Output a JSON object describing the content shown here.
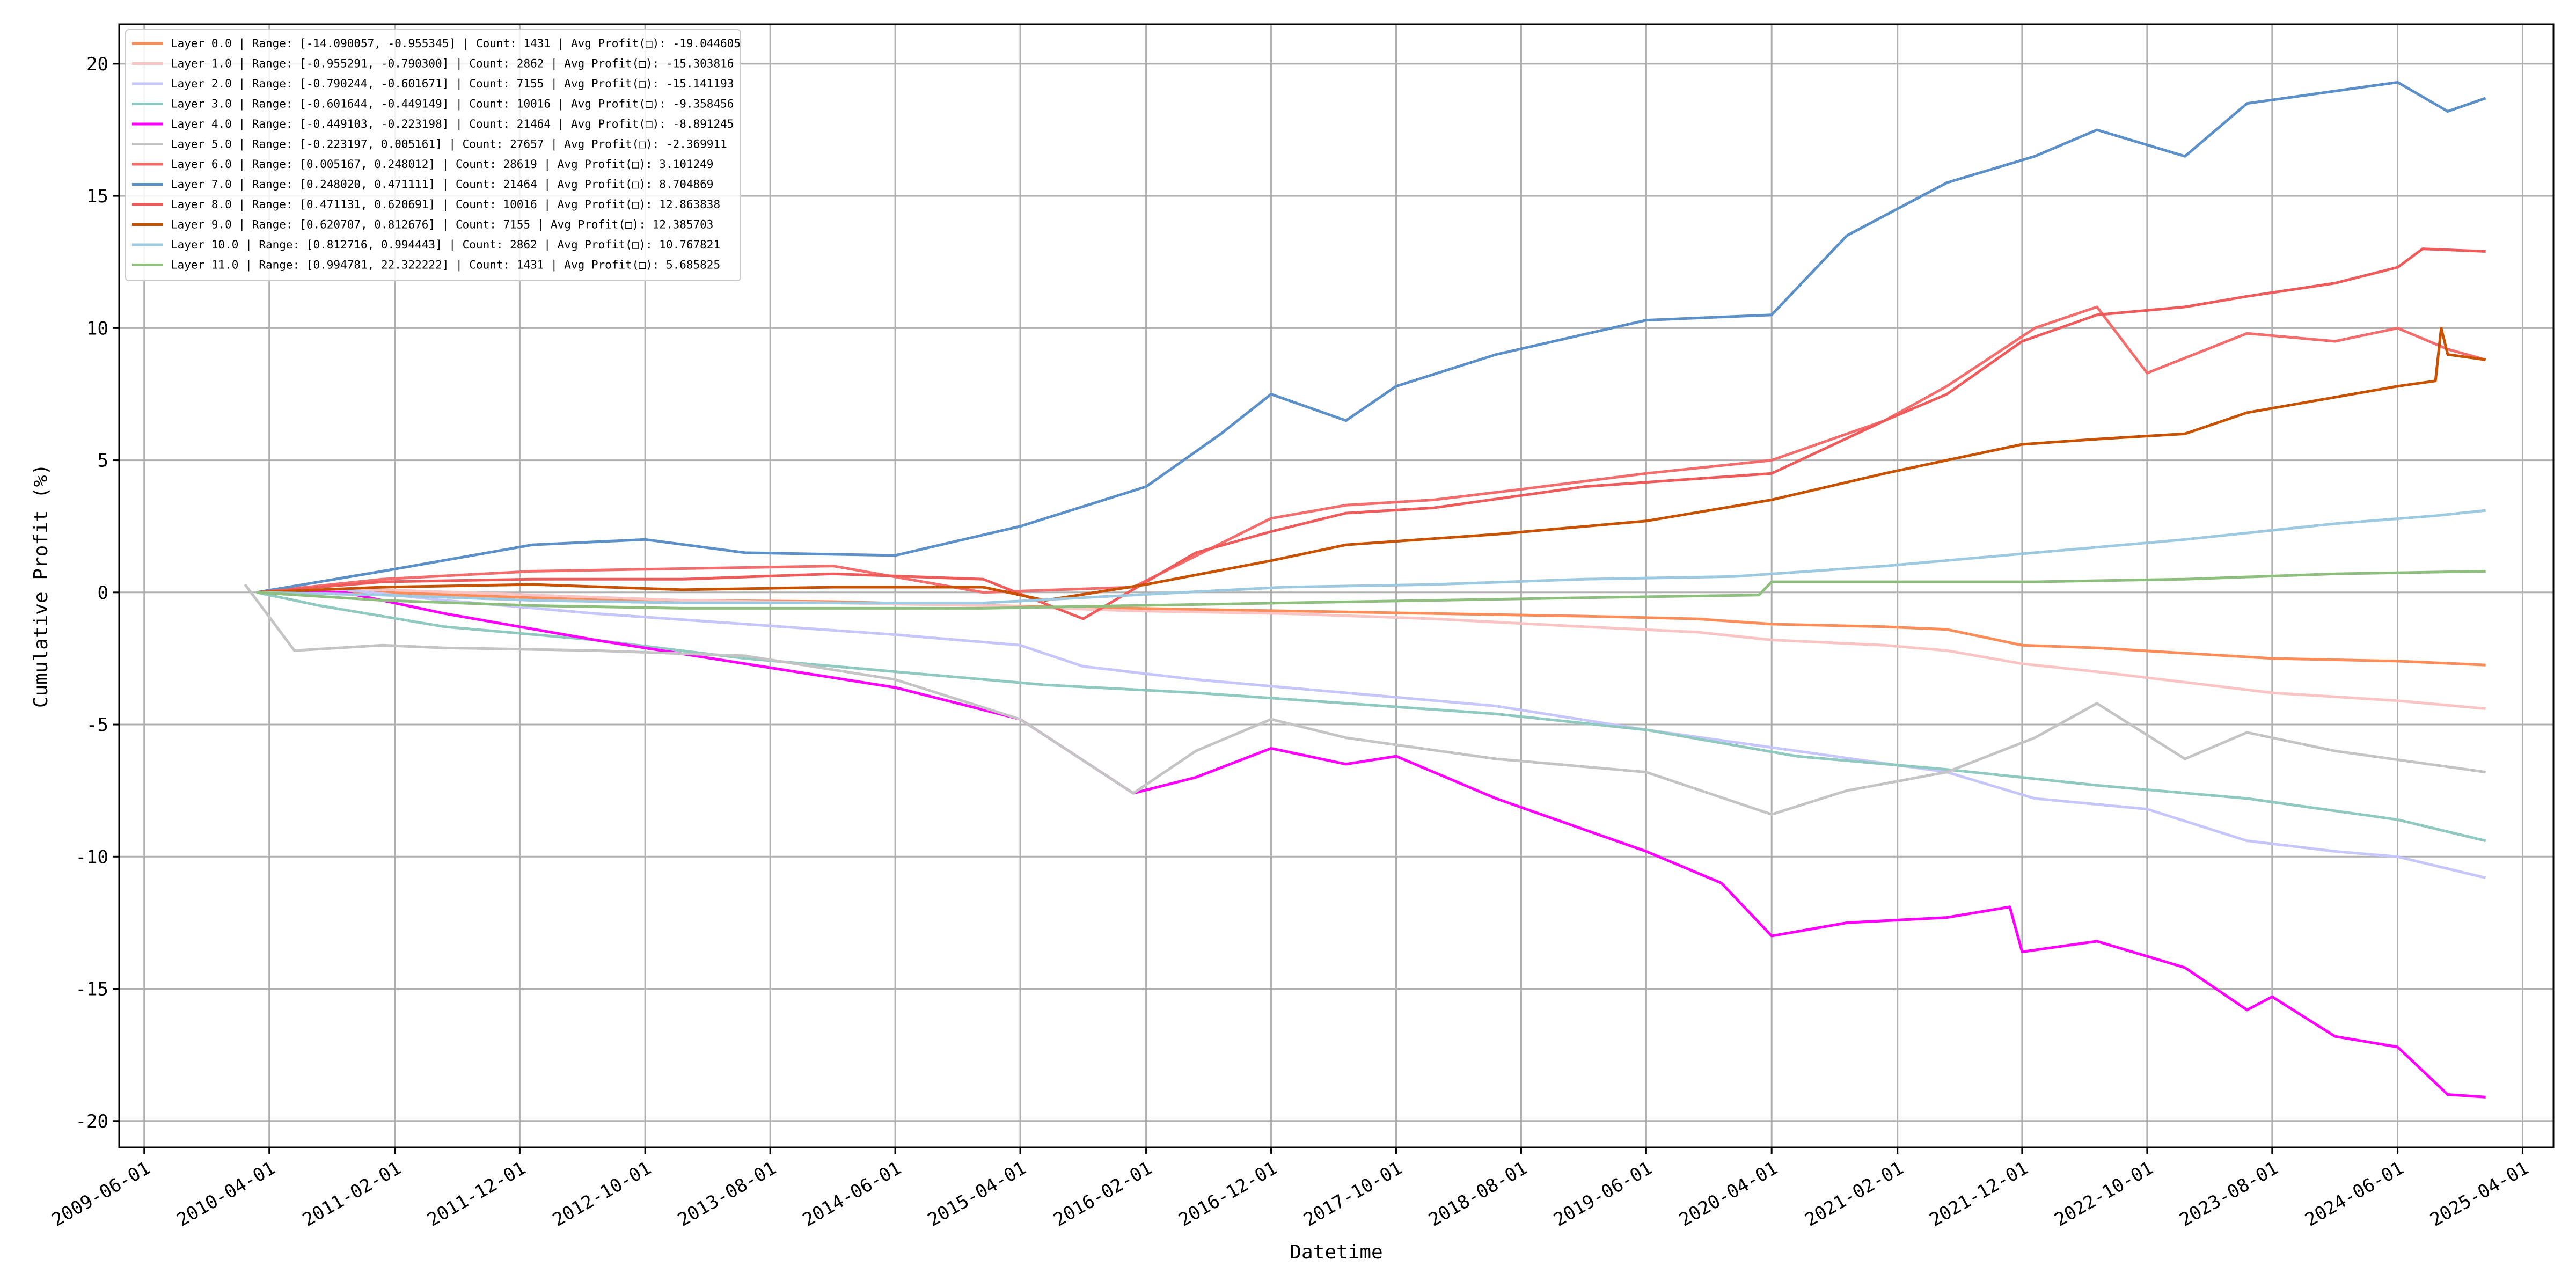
{
  "chart_data": {
    "type": "line",
    "xlabel": "Datetime",
    "ylabel": "Cumulative Profit (%)",
    "xlim": [
      "2009-04-01",
      "2025-06-15"
    ],
    "ylim": [
      -21,
      21.5
    ],
    "x_ticks": [
      "2009-06-01",
      "2010-04-01",
      "2011-02-01",
      "2011-12-01",
      "2012-10-01",
      "2013-08-01",
      "2014-06-01",
      "2015-04-01",
      "2016-02-01",
      "2016-12-01",
      "2017-10-01",
      "2018-08-01",
      "2019-06-01",
      "2020-04-01",
      "2021-02-01",
      "2021-12-01",
      "2022-10-01",
      "2023-08-01",
      "2024-06-01",
      "2025-04-01"
    ],
    "y_ticks": [
      -20,
      -15,
      -10,
      -5,
      0,
      5,
      10,
      15,
      20
    ],
    "grid": true,
    "legend_position": "top-left",
    "series": [
      {
        "name": "Layer 0.0 | Range: [-14.090057, -0.955345] | Count: 1431 | Avg Profit(□): -19.044605",
        "color": "#fc8d59",
        "x": [
          "2010-03-01",
          "2011-01-01",
          "2012-01-01",
          "2013-01-01",
          "2014-01-01",
          "2015-01-01",
          "2016-01-01",
          "2017-01-01",
          "2018-01-01",
          "2019-01-01",
          "2019-10-01",
          "2020-04-01",
          "2021-01-01",
          "2021-06-01",
          "2021-12-01",
          "2022-06-01",
          "2023-01-01",
          "2023-08-01",
          "2024-06-01",
          "2025-01-01"
        ],
        "y": [
          0,
          0,
          -0.2,
          -0.3,
          -0.35,
          -0.5,
          -0.6,
          -0.7,
          -0.8,
          -0.9,
          -1.0,
          -1.2,
          -1.3,
          -1.4,
          -2.0,
          -2.1,
          -2.3,
          -2.5,
          -2.6,
          -2.75
        ]
      },
      {
        "name": "Layer 1.0 | Range: [-0.955291, -0.790300] | Count: 2862 | Avg Profit(□): -15.303816",
        "color": "#fbc4c4",
        "x": [
          "2010-03-01",
          "2011-01-01",
          "2012-01-01",
          "2013-01-01",
          "2014-01-01",
          "2015-01-01",
          "2016-01-01",
          "2017-01-01",
          "2018-01-01",
          "2019-01-01",
          "2019-10-01",
          "2020-04-01",
          "2021-01-01",
          "2021-06-01",
          "2021-12-01",
          "2022-06-01",
          "2023-01-01",
          "2023-08-01",
          "2024-06-01",
          "2025-01-01"
        ],
        "y": [
          0,
          0.1,
          -0.1,
          -0.3,
          -0.4,
          -0.5,
          -0.7,
          -0.8,
          -1.0,
          -1.3,
          -1.5,
          -1.8,
          -2.0,
          -2.2,
          -2.7,
          -3.0,
          -3.4,
          -3.8,
          -4.1,
          -4.4
        ]
      },
      {
        "name": "Layer 2.0 | Range: [-0.790244, -0.601671] | Count: 7155 | Avg Profit(□): -15.141193",
        "color": "#c6c6fb",
        "x": [
          "2010-03-01",
          "2010-10-01",
          "2011-06-01",
          "2012-06-01",
          "2013-06-01",
          "2014-06-01",
          "2015-04-01",
          "2015-09-01",
          "2016-06-01",
          "2017-06-01",
          "2018-06-01",
          "2019-06-01",
          "2020-06-01",
          "2021-06-01",
          "2022-01-01",
          "2022-10-01",
          "2023-06-01",
          "2024-01-01",
          "2024-06-01",
          "2025-01-01"
        ],
        "y": [
          0,
          0.1,
          -0.3,
          -0.8,
          -1.2,
          -1.6,
          -2.0,
          -2.8,
          -3.3,
          -3.8,
          -4.3,
          -5.2,
          -6.0,
          -6.8,
          -7.8,
          -8.2,
          -9.4,
          -9.8,
          -10.0,
          -10.8
        ]
      },
      {
        "name": "Layer 3.0 | Range: [-0.601644, -0.449149] | Count: 10016 | Avg Profit(□): -9.358456",
        "color": "#8fc9c0",
        "x": [
          "2010-03-01",
          "2010-08-01",
          "2011-06-01",
          "2012-06-01",
          "2013-06-01",
          "2014-06-01",
          "2015-06-01",
          "2016-06-01",
          "2017-06-01",
          "2018-06-01",
          "2019-06-01",
          "2020-06-01",
          "2021-06-01",
          "2022-06-01",
          "2023-06-01",
          "2024-06-01",
          "2025-01-01"
        ],
        "y": [
          0,
          -0.5,
          -1.3,
          -1.8,
          -2.5,
          -3.0,
          -3.5,
          -3.8,
          -4.2,
          -4.6,
          -5.2,
          -6.2,
          -6.7,
          -7.3,
          -7.8,
          -8.6,
          -9.4
        ]
      },
      {
        "name": "Layer 4.0 | Range: [-0.449103, -0.223198] | Count: 21464 | Avg Profit(□): -8.891245",
        "color": "#ff00ff",
        "x": [
          "2010-03-01",
          "2010-10-01",
          "2011-06-01",
          "2012-06-01",
          "2013-06-01",
          "2014-06-01",
          "2015-04-01",
          "2016-01-01",
          "2016-06-01",
          "2016-12-01",
          "2017-06-01",
          "2017-10-01",
          "2018-06-01",
          "2019-06-01",
          "2019-12-01",
          "2020-04-01",
          "2020-10-01",
          "2021-06-01",
          "2021-11-01",
          "2021-12-01",
          "2022-06-01",
          "2023-01-01",
          "2023-06-01",
          "2023-08-01",
          "2024-01-01",
          "2024-06-01",
          "2024-10-01",
          "2025-01-01"
        ],
        "y": [
          0,
          0,
          -0.8,
          -1.8,
          -2.7,
          -3.6,
          -4.8,
          -7.6,
          -7.0,
          -5.9,
          -6.5,
          -6.2,
          -7.8,
          -9.8,
          -11.0,
          -13.0,
          -12.5,
          -12.3,
          -11.9,
          -13.6,
          -13.2,
          -14.2,
          -15.8,
          -15.3,
          -16.8,
          -17.2,
          -19.0,
          -19.1
        ]
      },
      {
        "name": "Layer 5.0 | Range: [-0.223197, 0.005161] | Count: 27657 | Avg Profit(□): -2.369911",
        "color": "#c4c4c4",
        "x": [
          "2010-02-01",
          "2010-06-01",
          "2011-01-01",
          "2011-06-01",
          "2012-06-01",
          "2013-06-01",
          "2014-06-01",
          "2015-04-01",
          "2016-01-01",
          "2016-06-01",
          "2016-12-01",
          "2017-06-01",
          "2018-06-01",
          "2019-06-01",
          "2020-04-01",
          "2020-10-01",
          "2021-06-01",
          "2022-01-01",
          "2022-06-01",
          "2023-01-01",
          "2023-06-01",
          "2024-01-01",
          "2025-01-01"
        ],
        "y": [
          0.3,
          -2.2,
          -2.0,
          -2.1,
          -2.2,
          -2.4,
          -3.3,
          -4.8,
          -7.6,
          -6.0,
          -4.8,
          -5.5,
          -6.3,
          -6.8,
          -8.4,
          -7.5,
          -6.8,
          -5.5,
          -4.2,
          -6.3,
          -5.3,
          -6.0,
          -6.8
        ]
      },
      {
        "name": "Layer 6.0 | Range: [0.005167, 0.248012] | Count: 28619 | Avg Profit(□): 3.101249",
        "color": "#f46d6d",
        "x": [
          "2010-03-01",
          "2011-01-01",
          "2012-01-01",
          "2013-01-01",
          "2014-01-01",
          "2015-01-01",
          "2016-01-01",
          "2016-12-01",
          "2017-06-01",
          "2018-01-01",
          "2018-08-01",
          "2019-06-01",
          "2020-04-01",
          "2021-01-01",
          "2021-06-01",
          "2022-01-01",
          "2022-06-01",
          "2022-10-01",
          "2023-06-01",
          "2024-01-01",
          "2024-06-01",
          "2024-10-01",
          "2025-01-01"
        ],
        "y": [
          0,
          0.5,
          0.8,
          0.9,
          1.0,
          0.0,
          0.2,
          2.8,
          3.3,
          3.5,
          3.9,
          4.5,
          5.0,
          6.5,
          7.8,
          10.0,
          10.8,
          8.3,
          9.8,
          9.5,
          10.0,
          9.2,
          8.8
        ]
      },
      {
        "name": "Layer 7.0 | Range: [0.248020, 0.471111] | Count: 21464 | Avg Profit(□): 8.704869",
        "color": "#5b90c8",
        "x": [
          "2010-03-01",
          "2011-01-01",
          "2012-01-01",
          "2012-10-01",
          "2013-06-01",
          "2014-06-01",
          "2015-04-01",
          "2016-02-01",
          "2016-08-01",
          "2016-12-01",
          "2017-06-01",
          "2017-10-01",
          "2018-06-01",
          "2019-06-01",
          "2020-04-01",
          "2020-10-01",
          "2021-06-01",
          "2022-01-01",
          "2022-06-01",
          "2023-01-01",
          "2023-06-01",
          "2024-06-01",
          "2024-10-01",
          "2025-01-01"
        ],
        "y": [
          0,
          0.8,
          1.8,
          2.0,
          1.5,
          1.4,
          2.5,
          4.0,
          6.0,
          7.5,
          6.5,
          7.8,
          9.0,
          10.3,
          10.5,
          13.5,
          15.5,
          16.5,
          17.5,
          16.5,
          18.5,
          19.3,
          18.2,
          18.7
        ]
      },
      {
        "name": "Layer 8.0 | Range: [0.471131, 0.620691] | Count: 10016 | Avg Profit(□): 12.863838",
        "color": "#ef5b5b",
        "x": [
          "2010-03-01",
          "2011-01-01",
          "2012-01-01",
          "2013-01-01",
          "2014-01-01",
          "2015-01-01",
          "2015-09-01",
          "2016-06-01",
          "2016-12-01",
          "2017-06-01",
          "2018-01-01",
          "2019-01-01",
          "2020-04-01",
          "2021-01-01",
          "2021-06-01",
          "2021-12-01",
          "2022-06-01",
          "2023-01-01",
          "2023-06-01",
          "2024-01-01",
          "2024-06-01",
          "2024-08-01",
          "2025-01-01"
        ],
        "y": [
          0,
          0.4,
          0.5,
          0.5,
          0.7,
          0.5,
          -1.0,
          1.5,
          2.3,
          3.0,
          3.2,
          4.0,
          4.5,
          6.5,
          7.5,
          9.5,
          10.5,
          10.8,
          11.2,
          11.7,
          12.3,
          13.0,
          12.9
        ]
      },
      {
        "name": "Layer 9.0 | Range: [0.620707, 0.812676] | Count: 7155 | Avg Profit(□): 12.385703",
        "color": "#c85200",
        "x": [
          "2010-03-01",
          "2011-01-01",
          "2012-01-01",
          "2013-01-01",
          "2014-01-01",
          "2015-01-01",
          "2015-06-01",
          "2016-02-01",
          "2016-12-01",
          "2017-06-01",
          "2018-06-01",
          "2019-06-01",
          "2020-04-01",
          "2021-01-01",
          "2021-06-01",
          "2021-12-01",
          "2022-06-01",
          "2023-01-01",
          "2023-06-01",
          "2024-06-01",
          "2024-09-01",
          "2024-09-15",
          "2024-10-01",
          "2025-01-01"
        ],
        "y": [
          0,
          0.2,
          0.3,
          0.1,
          0.2,
          0.2,
          -0.3,
          0.3,
          1.2,
          1.8,
          2.2,
          2.7,
          3.5,
          4.5,
          5.0,
          5.6,
          5.8,
          6.0,
          6.8,
          7.8,
          8.0,
          10.0,
          9.0,
          8.8
        ]
      },
      {
        "name": "Layer 10.0 | Range: [0.812716, 0.994443] | Count: 2862 | Avg Profit(□): 10.767821",
        "color": "#9ecae1",
        "x": [
          "2010-03-01",
          "2011-01-01",
          "2012-01-01",
          "2013-01-01",
          "2014-01-01",
          "2015-01-01",
          "2016-01-01",
          "2017-01-01",
          "2018-01-01",
          "2019-01-01",
          "2020-01-01",
          "2021-01-01",
          "2022-01-01",
          "2023-01-01",
          "2024-01-01",
          "2024-09-01",
          "2025-01-01"
        ],
        "y": [
          0,
          -0.1,
          -0.3,
          -0.4,
          -0.4,
          -0.4,
          -0.1,
          0.2,
          0.3,
          0.5,
          0.6,
          1.0,
          1.5,
          2.0,
          2.6,
          2.9,
          3.1
        ]
      },
      {
        "name": "Layer 11.0 | Range: [0.994781, 22.322222] | Count: 1431 | Avg Profit(□): 5.685825",
        "color": "#8fbf7f",
        "x": [
          "2010-03-01",
          "2011-01-01",
          "2012-01-01",
          "2013-01-01",
          "2014-01-01",
          "2015-01-01",
          "2016-01-01",
          "2017-01-01",
          "2018-01-01",
          "2019-01-01",
          "2020-03-01",
          "2020-04-01",
          "2021-01-01",
          "2022-01-01",
          "2023-01-01",
          "2024-01-01",
          "2025-01-01"
        ],
        "y": [
          0,
          -0.3,
          -0.5,
          -0.6,
          -0.6,
          -0.6,
          -0.5,
          -0.4,
          -0.3,
          -0.2,
          -0.1,
          0.4,
          0.4,
          0.4,
          0.5,
          0.7,
          0.8
        ]
      }
    ]
  }
}
